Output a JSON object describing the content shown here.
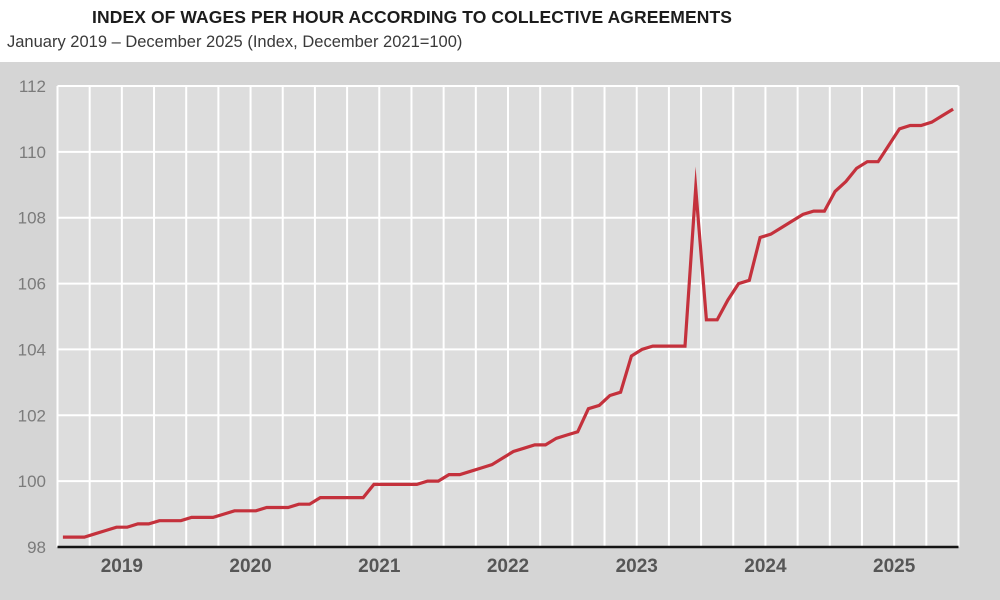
{
  "header": {
    "title": "INDEX OF WAGES PER HOUR ACCORDING TO COLLECTIVE AGREEMENTS",
    "subtitle": "January 2019 – December 2025 (Index, December 2021=100)"
  },
  "chart_data": {
    "type": "line",
    "title": "INDEX OF WAGES PER HOUR ACCORDING TO COLLECTIVE AGREEMENTS",
    "subtitle": "January 2019 – December 2025 (Index, December 2021=100)",
    "x_start": "January 2019",
    "x_end": "December 2025",
    "x_tick_labels": [
      "2019",
      "2020",
      "2021",
      "2022",
      "2023",
      "2024",
      "2025"
    ],
    "y_ticks": [
      98,
      100,
      102,
      104,
      106,
      108,
      110,
      112
    ],
    "ylim": [
      98,
      112
    ],
    "grid": {
      "horizontal_every": 2,
      "vertical_every_months": 3,
      "gridline_color": "#ffffff",
      "plot_background": "#dddddd"
    },
    "legend": "none",
    "series": [
      {
        "name": "Index of wages per hour according to collective agreements (December 2021=100)",
        "color": "#c4313c",
        "frequency": "monthly",
        "monthly_values": {
          "2019": [
            98.3,
            98.3,
            98.3,
            98.4,
            98.5,
            98.6,
            98.6,
            98.7,
            98.7,
            98.8,
            98.8,
            98.8
          ],
          "2020": [
            98.9,
            98.9,
            98.9,
            99.0,
            99.1,
            99.1,
            99.1,
            99.2,
            99.2,
            99.2,
            99.3,
            99.3
          ],
          "2021": [
            99.5,
            99.5,
            99.5,
            99.5,
            99.5,
            99.9,
            99.9,
            99.9,
            99.9,
            99.9,
            100.0,
            100.0
          ],
          "2022": [
            100.2,
            100.2,
            100.3,
            100.4,
            100.5,
            100.7,
            100.9,
            101.0,
            101.1,
            101.1,
            101.3,
            101.4
          ],
          "2023": [
            101.5,
            102.2,
            102.3,
            102.6,
            102.7,
            103.8,
            104.0,
            104.1,
            104.1,
            104.1,
            104.1,
            108.9
          ],
          "2024": [
            104.9,
            104.9,
            105.5,
            106.0,
            106.1,
            107.4,
            107.5,
            107.7,
            107.9,
            108.1,
            108.2,
            108.2
          ],
          "2025": [
            108.8,
            109.1,
            109.5,
            109.7,
            109.7,
            110.2,
            110.7,
            110.8,
            110.8,
            110.9,
            111.1,
            111.3
          ]
        },
        "notable_points": {
          "spike_month": "December 2023",
          "spike_value": 108.9,
          "post_spike_trough": 104.9,
          "last_value": 111.3
        }
      }
    ]
  },
  "colors": {
    "line_red": "#c4313c",
    "panel_background": "#d5d5d5",
    "plot_background": "#dddddd",
    "gridline": "#ffffff",
    "axis_black": "#141414",
    "y_label_gray": "#7b7b7b",
    "x_label_gray": "#565656",
    "title_color": "#1c1c1c",
    "page_background": "#ffffff"
  }
}
